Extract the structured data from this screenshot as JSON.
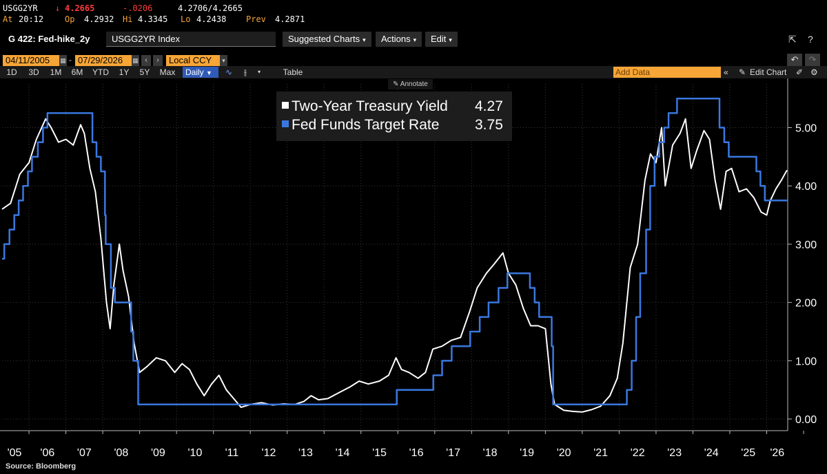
{
  "quote": {
    "ticker": "USGG2YR",
    "arrow": "↓",
    "last": "4.2665",
    "change": "-.0206",
    "bid_ask": "4.2706/4.2665",
    "time_label": "At",
    "time": "20:12",
    "open_label": "Op",
    "open": "4.2932",
    "high_label": "Hi",
    "high": "4.3345",
    "low_label": "Lo",
    "low": "4.2438",
    "prev_label": "Prev",
    "prev": "4.2871"
  },
  "titlebar": {
    "chart_id": "G 422: Fed-hike_2y",
    "security": "USGG2YR Index",
    "menus": [
      "Suggested Charts",
      "Actions",
      "Edit"
    ],
    "share_icon": "share-icon",
    "help_icon": "help-icon",
    "expand_icon": "expand-icon"
  },
  "datebar": {
    "start_date": "04/11/2005",
    "separator": "-",
    "end_date": "07/29/2026",
    "currency": "Local CCY",
    "undo_icon": "undo-icon",
    "redo_icon": "redo-icon"
  },
  "periodbar": {
    "periods": [
      "1D",
      "3D",
      "1M",
      "6M",
      "YTD",
      "1Y",
      "5Y",
      "Max"
    ],
    "frequency": "Daily",
    "table_label": "Table",
    "add_data_placeholder": "Add Data",
    "edit_chart_label": "Edit Chart"
  },
  "annotate_label": "Annotate",
  "source": "Source: Bloomberg",
  "colors": {
    "background": "#000000",
    "accent_orange": "#f7a536",
    "negative_red": "#ff3b3b",
    "active_blue": "#2f5bb8",
    "series_white": "#ffffff",
    "series_blue": "#3a78e0"
  },
  "chart_data": {
    "type": "line",
    "xlabel": "",
    "ylabel": "",
    "x_ticks": [
      "'05",
      "'06",
      "'07",
      "'08",
      "'09",
      "'10",
      "'11",
      "'12",
      "'13",
      "'14",
      "'15",
      "'16",
      "'17",
      "'18",
      "'19",
      "'20",
      "'21",
      "'22",
      "'23",
      "'24",
      "'25",
      "'26"
    ],
    "y_ticks": [
      "0.00",
      "1.00",
      "2.00",
      "3.00",
      "4.00",
      "5.00"
    ],
    "ylim": [
      -0.2,
      5.75
    ],
    "xlim": [
      2005.27,
      2026.57
    ],
    "grid": true,
    "legend_position": "top-center",
    "series": [
      {
        "name": "Two-Year Treasury Yield",
        "last_value": "4.27",
        "color": "#ffffff",
        "points": [
          [
            2005.27,
            3.6
          ],
          [
            2005.5,
            3.7
          ],
          [
            2005.75,
            4.2
          ],
          [
            2006.0,
            4.4
          ],
          [
            2006.2,
            4.8
          ],
          [
            2006.45,
            5.15
          ],
          [
            2006.6,
            5.0
          ],
          [
            2006.8,
            4.75
          ],
          [
            2007.0,
            4.8
          ],
          [
            2007.2,
            4.7
          ],
          [
            2007.4,
            5.05
          ],
          [
            2007.5,
            4.9
          ],
          [
            2007.65,
            4.3
          ],
          [
            2007.8,
            3.9
          ],
          [
            2007.95,
            3.1
          ],
          [
            2008.1,
            2.0
          ],
          [
            2008.2,
            1.55
          ],
          [
            2008.3,
            2.3
          ],
          [
            2008.45,
            3.0
          ],
          [
            2008.55,
            2.55
          ],
          [
            2008.7,
            2.1
          ],
          [
            2008.85,
            1.3
          ],
          [
            2009.0,
            0.8
          ],
          [
            2009.2,
            0.9
          ],
          [
            2009.45,
            1.05
          ],
          [
            2009.7,
            1.0
          ],
          [
            2009.95,
            0.8
          ],
          [
            2010.15,
            0.95
          ],
          [
            2010.35,
            0.85
          ],
          [
            2010.55,
            0.6
          ],
          [
            2010.75,
            0.4
          ],
          [
            2010.95,
            0.6
          ],
          [
            2011.15,
            0.75
          ],
          [
            2011.35,
            0.5
          ],
          [
            2011.55,
            0.35
          ],
          [
            2011.75,
            0.2
          ],
          [
            2012.0,
            0.25
          ],
          [
            2012.3,
            0.28
          ],
          [
            2012.6,
            0.24
          ],
          [
            2012.9,
            0.26
          ],
          [
            2013.2,
            0.25
          ],
          [
            2013.45,
            0.3
          ],
          [
            2013.65,
            0.4
          ],
          [
            2013.85,
            0.33
          ],
          [
            2014.1,
            0.35
          ],
          [
            2014.4,
            0.45
          ],
          [
            2014.7,
            0.55
          ],
          [
            2014.95,
            0.65
          ],
          [
            2015.2,
            0.6
          ],
          [
            2015.5,
            0.65
          ],
          [
            2015.75,
            0.75
          ],
          [
            2015.95,
            1.05
          ],
          [
            2016.1,
            0.85
          ],
          [
            2016.3,
            0.8
          ],
          [
            2016.55,
            0.7
          ],
          [
            2016.75,
            0.8
          ],
          [
            2016.95,
            1.2
          ],
          [
            2017.2,
            1.25
          ],
          [
            2017.45,
            1.35
          ],
          [
            2017.7,
            1.4
          ],
          [
            2017.95,
            1.85
          ],
          [
            2018.15,
            2.25
          ],
          [
            2018.4,
            2.5
          ],
          [
            2018.6,
            2.65
          ],
          [
            2018.85,
            2.85
          ],
          [
            2019.0,
            2.5
          ],
          [
            2019.2,
            2.3
          ],
          [
            2019.4,
            1.9
          ],
          [
            2019.6,
            1.6
          ],
          [
            2019.8,
            1.6
          ],
          [
            2020.0,
            1.55
          ],
          [
            2020.15,
            0.6
          ],
          [
            2020.25,
            0.25
          ],
          [
            2020.5,
            0.15
          ],
          [
            2020.75,
            0.13
          ],
          [
            2021.0,
            0.12
          ],
          [
            2021.25,
            0.16
          ],
          [
            2021.5,
            0.22
          ],
          [
            2021.75,
            0.4
          ],
          [
            2021.95,
            0.7
          ],
          [
            2022.1,
            1.3
          ],
          [
            2022.3,
            2.6
          ],
          [
            2022.5,
            3.0
          ],
          [
            2022.7,
            4.1
          ],
          [
            2022.85,
            4.55
          ],
          [
            2023.0,
            4.4
          ],
          [
            2023.15,
            5.0
          ],
          [
            2023.25,
            4.0
          ],
          [
            2023.45,
            4.7
          ],
          [
            2023.65,
            4.9
          ],
          [
            2023.8,
            5.15
          ],
          [
            2023.95,
            4.3
          ],
          [
            2024.1,
            4.6
          ],
          [
            2024.3,
            4.95
          ],
          [
            2024.45,
            4.8
          ],
          [
            2024.6,
            4.1
          ],
          [
            2024.75,
            3.6
          ],
          [
            2024.9,
            4.25
          ],
          [
            2025.05,
            4.3
          ],
          [
            2025.25,
            3.9
          ],
          [
            2025.45,
            3.95
          ],
          [
            2025.65,
            3.8
          ],
          [
            2025.85,
            3.55
          ],
          [
            2026.0,
            3.5
          ],
          [
            2026.1,
            3.75
          ],
          [
            2026.25,
            3.95
          ],
          [
            2026.4,
            4.1
          ],
          [
            2026.55,
            4.27
          ]
        ]
      },
      {
        "name": "Fed Funds Target Rate",
        "last_value": "3.75",
        "color": "#3a78e0",
        "points": [
          [
            2005.27,
            2.75
          ],
          [
            2005.33,
            3.0
          ],
          [
            2005.47,
            3.25
          ],
          [
            2005.6,
            3.5
          ],
          [
            2005.72,
            3.75
          ],
          [
            2005.84,
            4.0
          ],
          [
            2005.97,
            4.25
          ],
          [
            2006.08,
            4.5
          ],
          [
            2006.24,
            4.75
          ],
          [
            2006.38,
            5.0
          ],
          [
            2006.5,
            5.25
          ],
          [
            2007.63,
            5.25
          ],
          [
            2007.72,
            4.75
          ],
          [
            2007.83,
            4.5
          ],
          [
            2007.95,
            4.25
          ],
          [
            2008.06,
            3.5
          ],
          [
            2008.08,
            3.0
          ],
          [
            2008.22,
            2.25
          ],
          [
            2008.33,
            2.0
          ],
          [
            2008.77,
            1.5
          ],
          [
            2008.83,
            1.0
          ],
          [
            2008.96,
            0.25
          ],
          [
            2015.96,
            0.25
          ],
          [
            2015.97,
            0.5
          ],
          [
            2016.96,
            0.75
          ],
          [
            2017.2,
            1.0
          ],
          [
            2017.46,
            1.25
          ],
          [
            2017.96,
            1.5
          ],
          [
            2018.22,
            1.75
          ],
          [
            2018.46,
            2.0
          ],
          [
            2018.73,
            2.25
          ],
          [
            2018.97,
            2.5
          ],
          [
            2019.58,
            2.25
          ],
          [
            2019.71,
            2.0
          ],
          [
            2019.83,
            1.75
          ],
          [
            2020.17,
            1.25
          ],
          [
            2020.21,
            0.25
          ],
          [
            2022.21,
            0.5
          ],
          [
            2022.34,
            1.0
          ],
          [
            2022.46,
            1.75
          ],
          [
            2022.57,
            2.5
          ],
          [
            2022.73,
            3.25
          ],
          [
            2022.84,
            4.0
          ],
          [
            2022.96,
            4.5
          ],
          [
            2023.09,
            4.75
          ],
          [
            2023.22,
            5.0
          ],
          [
            2023.34,
            5.25
          ],
          [
            2023.57,
            5.5
          ],
          [
            2024.72,
            5.0
          ],
          [
            2024.85,
            4.75
          ],
          [
            2024.97,
            4.5
          ],
          [
            2025.72,
            4.25
          ],
          [
            2025.83,
            4.0
          ],
          [
            2025.95,
            3.75
          ],
          [
            2026.57,
            3.75
          ]
        ]
      }
    ]
  }
}
